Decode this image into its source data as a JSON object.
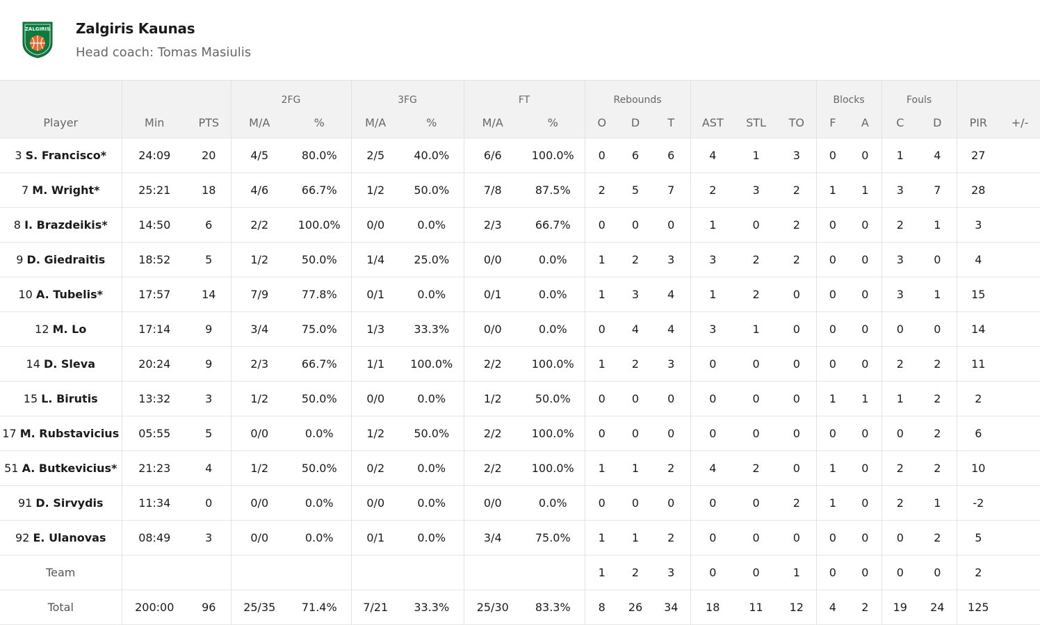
{
  "team": {
    "name": "Zalgiris Kaunas",
    "coach": "Head coach: Tomas Masiulis",
    "logo_text": "ZALGIRIS",
    "colors": {
      "green": "#0e7a3e",
      "orange": "#e8682a",
      "white": "#ffffff"
    }
  },
  "header": {
    "groups": {
      "fg2": "2FG",
      "fg3": "3FG",
      "ft": "FT",
      "rebounds": "Rebounds",
      "blocks": "Blocks",
      "fouls": "Fouls"
    },
    "cols": {
      "player": "Player",
      "min": "Min",
      "pts": "PTS",
      "fg2_ma": "M/A",
      "fg2_pct": "%",
      "fg3_ma": "M/A",
      "fg3_pct": "%",
      "ft_ma": "M/A",
      "ft_pct": "%",
      "reb_o": "O",
      "reb_d": "D",
      "reb_t": "T",
      "ast": "AST",
      "stl": "STL",
      "to": "TO",
      "blk_f": "F",
      "blk_a": "A",
      "foul_c": "C",
      "foul_d": "D",
      "pir": "PIR",
      "pm": "+/-"
    }
  },
  "players": [
    {
      "num": "3",
      "name": "S. Francisco*",
      "min": "24:09",
      "pts": "20",
      "fg2_ma": "4/5",
      "fg2_pct": "80.0%",
      "fg3_ma": "2/5",
      "fg3_pct": "40.0%",
      "ft_ma": "6/6",
      "ft_pct": "100.0%",
      "reb_o": "0",
      "reb_d": "6",
      "reb_t": "6",
      "ast": "4",
      "stl": "1",
      "to": "3",
      "blk_f": "0",
      "blk_a": "0",
      "foul_c": "1",
      "foul_d": "4",
      "pir": "27",
      "pm": ""
    },
    {
      "num": "7",
      "name": "M. Wright*",
      "min": "25:21",
      "pts": "18",
      "fg2_ma": "4/6",
      "fg2_pct": "66.7%",
      "fg3_ma": "1/2",
      "fg3_pct": "50.0%",
      "ft_ma": "7/8",
      "ft_pct": "87.5%",
      "reb_o": "2",
      "reb_d": "5",
      "reb_t": "7",
      "ast": "2",
      "stl": "3",
      "to": "2",
      "blk_f": "1",
      "blk_a": "1",
      "foul_c": "3",
      "foul_d": "7",
      "pir": "28",
      "pm": ""
    },
    {
      "num": "8",
      "name": "I. Brazdeikis*",
      "min": "14:50",
      "pts": "6",
      "fg2_ma": "2/2",
      "fg2_pct": "100.0%",
      "fg3_ma": "0/0",
      "fg3_pct": "0.0%",
      "ft_ma": "2/3",
      "ft_pct": "66.7%",
      "reb_o": "0",
      "reb_d": "0",
      "reb_t": "0",
      "ast": "1",
      "stl": "0",
      "to": "2",
      "blk_f": "0",
      "blk_a": "0",
      "foul_c": "2",
      "foul_d": "1",
      "pir": "3",
      "pm": ""
    },
    {
      "num": "9",
      "name": "D. Giedraitis",
      "min": "18:52",
      "pts": "5",
      "fg2_ma": "1/2",
      "fg2_pct": "50.0%",
      "fg3_ma": "1/4",
      "fg3_pct": "25.0%",
      "ft_ma": "0/0",
      "ft_pct": "0.0%",
      "reb_o": "1",
      "reb_d": "2",
      "reb_t": "3",
      "ast": "3",
      "stl": "2",
      "to": "2",
      "blk_f": "0",
      "blk_a": "0",
      "foul_c": "3",
      "foul_d": "0",
      "pir": "4",
      "pm": ""
    },
    {
      "num": "10",
      "name": "A. Tubelis*",
      "min": "17:57",
      "pts": "14",
      "fg2_ma": "7/9",
      "fg2_pct": "77.8%",
      "fg3_ma": "0/1",
      "fg3_pct": "0.0%",
      "ft_ma": "0/1",
      "ft_pct": "0.0%",
      "reb_o": "1",
      "reb_d": "3",
      "reb_t": "4",
      "ast": "1",
      "stl": "2",
      "to": "0",
      "blk_f": "0",
      "blk_a": "0",
      "foul_c": "3",
      "foul_d": "1",
      "pir": "15",
      "pm": ""
    },
    {
      "num": "12",
      "name": "M. Lo",
      "min": "17:14",
      "pts": "9",
      "fg2_ma": "3/4",
      "fg2_pct": "75.0%",
      "fg3_ma": "1/3",
      "fg3_pct": "33.3%",
      "ft_ma": "0/0",
      "ft_pct": "0.0%",
      "reb_o": "0",
      "reb_d": "4",
      "reb_t": "4",
      "ast": "3",
      "stl": "1",
      "to": "0",
      "blk_f": "0",
      "blk_a": "0",
      "foul_c": "0",
      "foul_d": "0",
      "pir": "14",
      "pm": ""
    },
    {
      "num": "14",
      "name": "D. Sleva",
      "min": "20:24",
      "pts": "9",
      "fg2_ma": "2/3",
      "fg2_pct": "66.7%",
      "fg3_ma": "1/1",
      "fg3_pct": "100.0%",
      "ft_ma": "2/2",
      "ft_pct": "100.0%",
      "reb_o": "1",
      "reb_d": "2",
      "reb_t": "3",
      "ast": "0",
      "stl": "0",
      "to": "0",
      "blk_f": "0",
      "blk_a": "0",
      "foul_c": "2",
      "foul_d": "2",
      "pir": "11",
      "pm": ""
    },
    {
      "num": "15",
      "name": "L. Birutis",
      "min": "13:32",
      "pts": "3",
      "fg2_ma": "1/2",
      "fg2_pct": "50.0%",
      "fg3_ma": "0/0",
      "fg3_pct": "0.0%",
      "ft_ma": "1/2",
      "ft_pct": "50.0%",
      "reb_o": "0",
      "reb_d": "0",
      "reb_t": "0",
      "ast": "0",
      "stl": "0",
      "to": "0",
      "blk_f": "1",
      "blk_a": "1",
      "foul_c": "1",
      "foul_d": "2",
      "pir": "2",
      "pm": ""
    },
    {
      "num": "17",
      "name": "M. Rubstavicius",
      "min": "05:55",
      "pts": "5",
      "fg2_ma": "0/0",
      "fg2_pct": "0.0%",
      "fg3_ma": "1/2",
      "fg3_pct": "50.0%",
      "ft_ma": "2/2",
      "ft_pct": "100.0%",
      "reb_o": "0",
      "reb_d": "0",
      "reb_t": "0",
      "ast": "0",
      "stl": "0",
      "to": "0",
      "blk_f": "0",
      "blk_a": "0",
      "foul_c": "0",
      "foul_d": "2",
      "pir": "6",
      "pm": ""
    },
    {
      "num": "51",
      "name": "A. Butkevicius*",
      "min": "21:23",
      "pts": "4",
      "fg2_ma": "1/2",
      "fg2_pct": "50.0%",
      "fg3_ma": "0/2",
      "fg3_pct": "0.0%",
      "ft_ma": "2/2",
      "ft_pct": "100.0%",
      "reb_o": "1",
      "reb_d": "1",
      "reb_t": "2",
      "ast": "4",
      "stl": "2",
      "to": "0",
      "blk_f": "1",
      "blk_a": "0",
      "foul_c": "2",
      "foul_d": "2",
      "pir": "10",
      "pm": ""
    },
    {
      "num": "91",
      "name": "D. Sirvydis",
      "min": "11:34",
      "pts": "0",
      "fg2_ma": "0/0",
      "fg2_pct": "0.0%",
      "fg3_ma": "0/0",
      "fg3_pct": "0.0%",
      "ft_ma": "0/0",
      "ft_pct": "0.0%",
      "reb_o": "0",
      "reb_d": "0",
      "reb_t": "0",
      "ast": "0",
      "stl": "0",
      "to": "2",
      "blk_f": "1",
      "blk_a": "0",
      "foul_c": "2",
      "foul_d": "1",
      "pir": "-2",
      "pm": ""
    },
    {
      "num": "92",
      "name": "E. Ulanovas",
      "min": "08:49",
      "pts": "3",
      "fg2_ma": "0/0",
      "fg2_pct": "0.0%",
      "fg3_ma": "0/1",
      "fg3_pct": "0.0%",
      "ft_ma": "3/4",
      "ft_pct": "75.0%",
      "reb_o": "1",
      "reb_d": "1",
      "reb_t": "2",
      "ast": "0",
      "stl": "0",
      "to": "0",
      "blk_f": "0",
      "blk_a": "0",
      "foul_c": "0",
      "foul_d": "2",
      "pir": "5",
      "pm": ""
    }
  ],
  "team_row": {
    "label": "Team",
    "min": "",
    "pts": "",
    "fg2_ma": "",
    "fg2_pct": "",
    "fg3_ma": "",
    "fg3_pct": "",
    "ft_ma": "",
    "ft_pct": "",
    "reb_o": "1",
    "reb_d": "2",
    "reb_t": "3",
    "ast": "0",
    "stl": "0",
    "to": "1",
    "blk_f": "0",
    "blk_a": "0",
    "foul_c": "0",
    "foul_d": "0",
    "pir": "2",
    "pm": ""
  },
  "total_row": {
    "label": "Total",
    "min": "200:00",
    "pts": "96",
    "fg2_ma": "25/35",
    "fg2_pct": "71.4%",
    "fg3_ma": "7/21",
    "fg3_pct": "33.3%",
    "ft_ma": "25/30",
    "ft_pct": "83.3%",
    "reb_o": "8",
    "reb_d": "26",
    "reb_t": "34",
    "ast": "18",
    "stl": "11",
    "to": "12",
    "blk_f": "4",
    "blk_a": "2",
    "foul_c": "19",
    "foul_d": "24",
    "pir": "125",
    "pm": ""
  }
}
